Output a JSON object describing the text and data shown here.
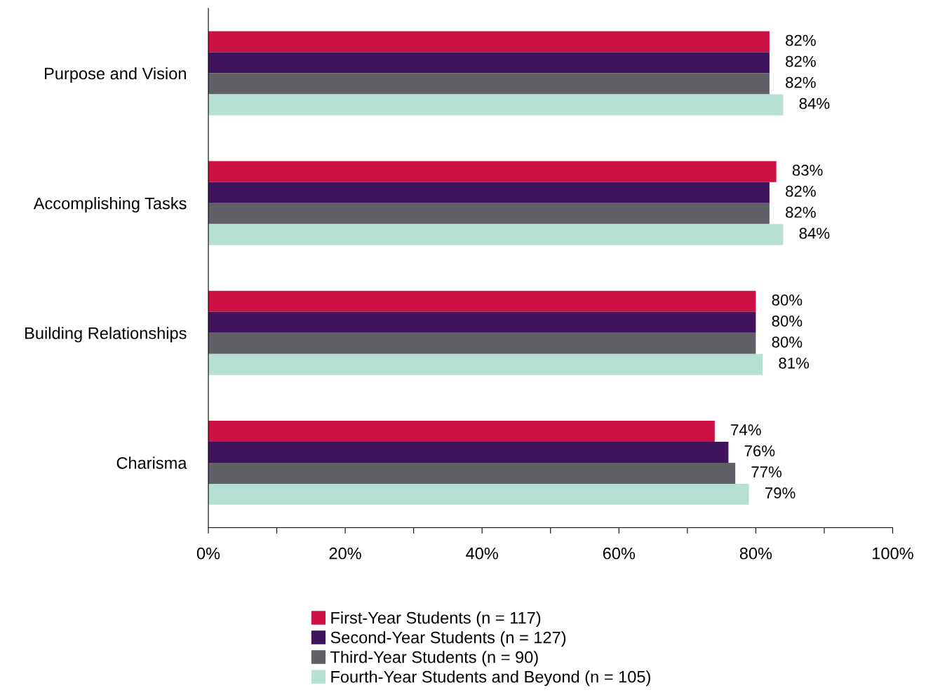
{
  "chart_data": {
    "type": "bar",
    "orientation": "horizontal",
    "categories": [
      "Purpose and Vision",
      "Accomplishing Tasks",
      "Building Relationships",
      "Charisma"
    ],
    "series": [
      {
        "name": "First-Year Students (n = 117)",
        "color": "#cc1144",
        "values": [
          82,
          83,
          80,
          74
        ],
        "value_labels": [
          "82%",
          "83%",
          "80%",
          "74%"
        ]
      },
      {
        "name": "Second-Year Students (n = 127)",
        "color": "#3f145c",
        "values": [
          82,
          82,
          80,
          76
        ],
        "value_labels": [
          "82%",
          "82%",
          "80%",
          "76%"
        ]
      },
      {
        "name": "Third-Year Students (n = 90)",
        "color": "#5f6166",
        "values": [
          82,
          82,
          80,
          77
        ],
        "value_labels": [
          "82%",
          "82%",
          "80%",
          "77%"
        ]
      },
      {
        "name": "Fourth-Year Students and Beyond (n = 105)",
        "color": "#b6e0d4",
        "values": [
          84,
          84,
          81,
          79
        ],
        "value_labels": [
          "84%",
          "84%",
          "81%",
          "79%"
        ]
      }
    ],
    "xlim": [
      0,
      100
    ],
    "xticks": [
      {
        "value": 0,
        "label": "0%"
      },
      {
        "value": 10,
        "label": null
      },
      {
        "value": 20,
        "label": "20%"
      },
      {
        "value": 30,
        "label": null
      },
      {
        "value": 40,
        "label": "40%"
      },
      {
        "value": 50,
        "label": null
      },
      {
        "value": 60,
        "label": "60%"
      },
      {
        "value": 70,
        "label": null
      },
      {
        "value": 80,
        "label": "80%"
      },
      {
        "value": 90,
        "label": null
      },
      {
        "value": 100,
        "label": "100%"
      }
    ],
    "grid": false,
    "legend": "bottom"
  }
}
